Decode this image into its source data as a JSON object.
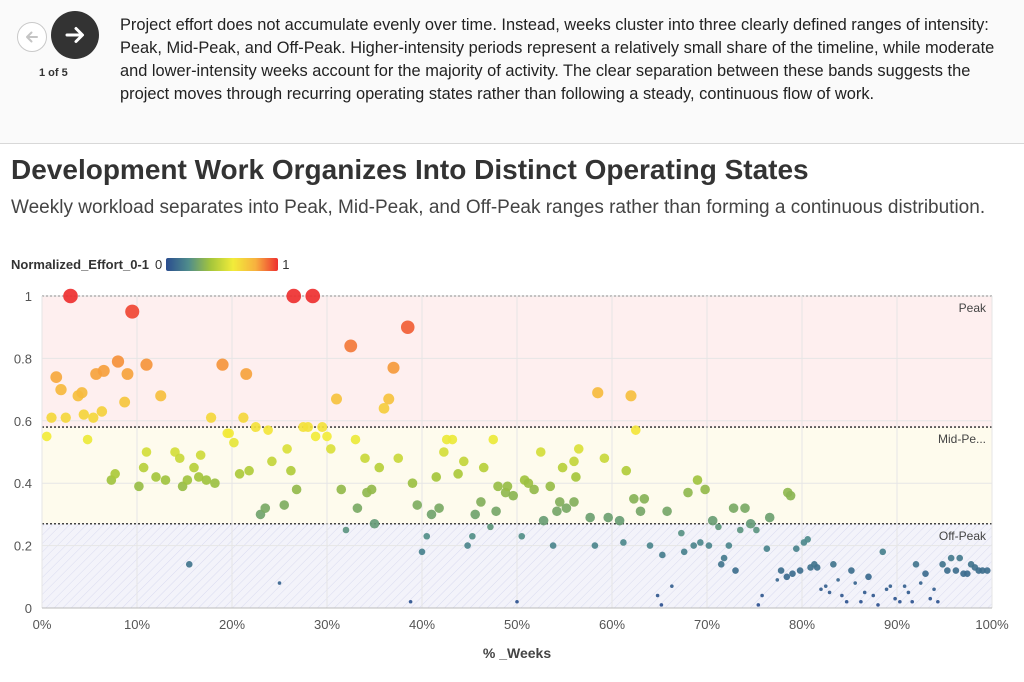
{
  "story": {
    "counter": "1 of 5",
    "narrative": "Project effort does not accumulate evenly over time. Instead, weeks cluster into three clearly defined ranges of intensity: Peak, Mid-Peak, and Off-Peak. Higher-intensity periods represent a relatively small share of the timeline, while moderate and lower-intensity weeks account for the majority of activity. The clear separation between these bands suggests the project moves through recurring operating states rather than following a steady, continuous flow of work."
  },
  "legend": {
    "title": "Normalized_Effort_0-1",
    "min_label": "0",
    "max_label": "1"
  },
  "chart_data": {
    "type": "scatter",
    "title": "Development Work Organizes Into Distinct Operating States",
    "subtitle": "Weekly workload separates into Peak, Mid-Peak, and Off-Peak ranges rather than forming a continuous distribution.",
    "xlabel": "% _Weeks",
    "ylabel": "Normalized_Effort_0-1",
    "xlim": [
      0,
      100
    ],
    "ylim": [
      0,
      1
    ],
    "x_ticks": [
      "0%",
      "10%",
      "20%",
      "30%",
      "40%",
      "50%",
      "60%",
      "70%",
      "80%",
      "90%",
      "100%"
    ],
    "y_ticks": [
      "0",
      "0.2",
      "0.4",
      "0.6",
      "0.8",
      "1"
    ],
    "bands": [
      {
        "name": "Peak",
        "label": "Peak",
        "from": 0.58,
        "to": 1.0,
        "color": "#ef4b4b"
      },
      {
        "name": "Mid-Peak",
        "label": "Mid-Pe...",
        "from": 0.27,
        "to": 0.58,
        "color": "#f2d63a"
      },
      {
        "name": "Off-Peak",
        "label": "Off-Peak",
        "from": 0.0,
        "to": 0.27,
        "color": "#7b7fc4"
      }
    ],
    "points": [
      [
        3,
        1.0
      ],
      [
        26.5,
        1.0
      ],
      [
        28.5,
        1.0
      ],
      [
        9.5,
        0.95
      ],
      [
        38.5,
        0.9
      ],
      [
        32.5,
        0.84
      ],
      [
        8,
        0.79
      ],
      [
        11,
        0.78
      ],
      [
        19,
        0.78
      ],
      [
        37,
        0.77
      ],
      [
        1.5,
        0.74
      ],
      [
        5.7,
        0.75
      ],
      [
        6.5,
        0.76
      ],
      [
        9,
        0.75
      ],
      [
        21.5,
        0.75
      ],
      [
        2,
        0.7
      ],
      [
        3.8,
        0.68
      ],
      [
        4.2,
        0.69
      ],
      [
        12.5,
        0.68
      ],
      [
        58.5,
        0.69
      ],
      [
        62,
        0.68
      ],
      [
        8.7,
        0.66
      ],
      [
        31,
        0.67
      ],
      [
        36.5,
        0.67
      ],
      [
        36,
        0.64
      ],
      [
        1,
        0.61
      ],
      [
        2.5,
        0.61
      ],
      [
        4.4,
        0.62
      ],
      [
        5.4,
        0.61
      ],
      [
        6.3,
        0.63
      ],
      [
        17.8,
        0.61
      ],
      [
        21.2,
        0.61
      ],
      [
        62.5,
        0.57
      ],
      [
        0.5,
        0.55
      ],
      [
        4.8,
        0.54
      ],
      [
        19.5,
        0.56
      ],
      [
        19.7,
        0.56
      ],
      [
        20.2,
        0.53
      ],
      [
        22.5,
        0.58
      ],
      [
        23.8,
        0.57
      ],
      [
        27.5,
        0.58
      ],
      [
        28,
        0.58
      ],
      [
        28.8,
        0.55
      ],
      [
        29.5,
        0.58
      ],
      [
        30,
        0.55
      ],
      [
        30.4,
        0.51
      ],
      [
        33,
        0.54
      ],
      [
        42.6,
        0.54
      ],
      [
        43.2,
        0.54
      ],
      [
        47.5,
        0.54
      ],
      [
        11,
        0.5
      ],
      [
        14,
        0.5
      ],
      [
        14.5,
        0.48
      ],
      [
        16.7,
        0.49
      ],
      [
        25.8,
        0.51
      ],
      [
        26.2,
        0.44
      ],
      [
        35.5,
        0.45
      ],
      [
        37.5,
        0.48
      ],
      [
        42.3,
        0.5
      ],
      [
        44.4,
        0.47
      ],
      [
        46.5,
        0.45
      ],
      [
        52.5,
        0.5
      ],
      [
        54.8,
        0.45
      ],
      [
        56,
        0.47
      ],
      [
        56.5,
        0.51
      ],
      [
        59.2,
        0.48
      ],
      [
        7.3,
        0.41
      ],
      [
        7.7,
        0.43
      ],
      [
        10.2,
        0.39
      ],
      [
        10.7,
        0.45
      ],
      [
        12,
        0.42
      ],
      [
        13,
        0.41
      ],
      [
        14.8,
        0.39
      ],
      [
        15.3,
        0.41
      ],
      [
        16,
        0.45
      ],
      [
        16.5,
        0.42
      ],
      [
        17.3,
        0.41
      ],
      [
        18.2,
        0.4
      ],
      [
        20.8,
        0.43
      ],
      [
        21.8,
        0.44
      ],
      [
        24.2,
        0.47
      ],
      [
        31.5,
        0.38
      ],
      [
        34.2,
        0.37
      ],
      [
        34.7,
        0.38
      ],
      [
        34,
        0.48
      ],
      [
        39,
        0.4
      ],
      [
        41.5,
        0.42
      ],
      [
        43.8,
        0.43
      ],
      [
        48,
        0.39
      ],
      [
        48.8,
        0.37
      ],
      [
        49,
        0.39
      ],
      [
        49.6,
        0.36
      ],
      [
        50.8,
        0.41
      ],
      [
        51.2,
        0.4
      ],
      [
        51.8,
        0.38
      ],
      [
        53.5,
        0.39
      ],
      [
        54.5,
        0.34
      ],
      [
        56.2,
        0.42
      ],
      [
        61.5,
        0.44
      ],
      [
        68,
        0.37
      ],
      [
        69,
        0.41
      ],
      [
        69.8,
        0.38
      ],
      [
        78.5,
        0.37
      ],
      [
        78.8,
        0.36
      ],
      [
        23,
        0.3
      ],
      [
        23.5,
        0.32
      ],
      [
        25.5,
        0.33
      ],
      [
        26.8,
        0.38
      ],
      [
        32,
        0.25
      ],
      [
        33.2,
        0.32
      ],
      [
        35,
        0.27
      ],
      [
        39.5,
        0.33
      ],
      [
        40.5,
        0.23
      ],
      [
        41,
        0.3
      ],
      [
        41.8,
        0.32
      ],
      [
        44.8,
        0.2
      ],
      [
        45.3,
        0.23
      ],
      [
        45.6,
        0.3
      ],
      [
        46.2,
        0.34
      ],
      [
        47.2,
        0.26
      ],
      [
        47.8,
        0.31
      ],
      [
        50.5,
        0.23
      ],
      [
        52.8,
        0.28
      ],
      [
        53.8,
        0.2
      ],
      [
        54.2,
        0.31
      ],
      [
        55.2,
        0.32
      ],
      [
        56,
        0.34
      ],
      [
        57.7,
        0.29
      ],
      [
        58.2,
        0.2
      ],
      [
        59.6,
        0.29
      ],
      [
        60.8,
        0.28
      ],
      [
        61.2,
        0.21
      ],
      [
        62.3,
        0.35
      ],
      [
        63,
        0.31
      ],
      [
        63.4,
        0.35
      ],
      [
        64,
        0.2
      ],
      [
        65.3,
        0.17
      ],
      [
        65.8,
        0.31
      ],
      [
        67.3,
        0.24
      ],
      [
        67.6,
        0.18
      ],
      [
        68.6,
        0.2
      ],
      [
        69.3,
        0.21
      ],
      [
        70.2,
        0.2
      ],
      [
        70.6,
        0.28
      ],
      [
        71.2,
        0.26
      ],
      [
        71.5,
        0.14
      ],
      [
        71.8,
        0.16
      ],
      [
        72.3,
        0.2
      ],
      [
        72.8,
        0.32
      ],
      [
        73,
        0.12
      ],
      [
        73.5,
        0.25
      ],
      [
        74,
        0.32
      ],
      [
        74.6,
        0.27
      ],
      [
        75.2,
        0.25
      ],
      [
        76.3,
        0.19
      ],
      [
        76.6,
        0.29
      ],
      [
        77.4,
        0.09
      ],
      [
        77.8,
        0.12
      ],
      [
        78.4,
        0.1
      ],
      [
        79,
        0.11
      ],
      [
        79.4,
        0.19
      ],
      [
        79.8,
        0.12
      ],
      [
        80.2,
        0.21
      ],
      [
        80.6,
        0.22
      ],
      [
        80.9,
        0.13
      ],
      [
        40,
        0.18
      ],
      [
        15.5,
        0.14
      ],
      [
        25,
        0.08
      ],
      [
        38.8,
        0.02
      ],
      [
        50,
        0.02
      ],
      [
        64.8,
        0.04
      ],
      [
        65.2,
        0.01
      ],
      [
        66.3,
        0.07
      ],
      [
        75.4,
        0.01
      ],
      [
        75.8,
        0.04
      ],
      [
        81.3,
        0.14
      ],
      [
        81.6,
        0.13
      ],
      [
        82,
        0.06
      ],
      [
        82.5,
        0.07
      ],
      [
        82.9,
        0.05
      ],
      [
        83.3,
        0.14
      ],
      [
        83.8,
        0.09
      ],
      [
        84.2,
        0.04
      ],
      [
        84.7,
        0.02
      ],
      [
        85.2,
        0.12
      ],
      [
        85.6,
        0.08
      ],
      [
        86.2,
        0.02
      ],
      [
        86.6,
        0.05
      ],
      [
        87,
        0.1
      ],
      [
        87.5,
        0.04
      ],
      [
        88,
        0.01
      ],
      [
        88.5,
        0.18
      ],
      [
        88.9,
        0.06
      ],
      [
        89.3,
        0.07
      ],
      [
        89.8,
        0.03
      ],
      [
        90.3,
        0.02
      ],
      [
        90.8,
        0.07
      ],
      [
        91.2,
        0.05
      ],
      [
        91.6,
        0.02
      ],
      [
        92,
        0.14
      ],
      [
        92.5,
        0.08
      ],
      [
        93,
        0.11
      ],
      [
        93.5,
        0.03
      ],
      [
        93.9,
        0.06
      ],
      [
        94.3,
        0.02
      ],
      [
        94.8,
        0.14
      ],
      [
        95.3,
        0.12
      ],
      [
        95.7,
        0.16
      ],
      [
        96.2,
        0.12
      ],
      [
        96.6,
        0.16
      ],
      [
        97,
        0.11
      ],
      [
        97.4,
        0.11
      ],
      [
        97.8,
        0.14
      ],
      [
        98.2,
        0.13
      ],
      [
        98.6,
        0.12
      ],
      [
        99,
        0.12
      ],
      [
        99.5,
        0.12
      ]
    ]
  }
}
